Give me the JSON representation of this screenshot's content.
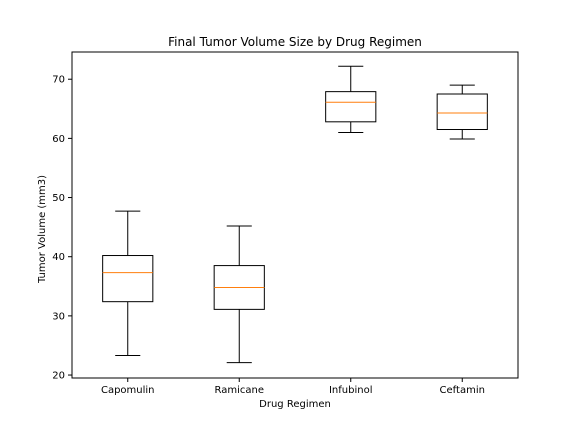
{
  "chart_data": {
    "type": "box",
    "title": "Final Tumor Volume Size by Drug Regimen",
    "xlabel": "Drug Regimen",
    "ylabel": "Tumor Volume (mm3)",
    "ylim": [
      19.5,
      74.6
    ],
    "yticks": [
      20,
      30,
      40,
      50,
      60,
      70
    ],
    "grid": false,
    "categories": [
      "Capomulin",
      "Ramicane",
      "Infubinol",
      "Ceftamin"
    ],
    "boxes": [
      {
        "whisker_low": 23.3,
        "q1": 32.4,
        "median": 37.3,
        "q3": 40.2,
        "whisker_high": 47.7
      },
      {
        "whisker_low": 22.1,
        "q1": 31.1,
        "median": 34.8,
        "q3": 38.5,
        "whisker_high": 45.2
      },
      {
        "whisker_low": 61.0,
        "q1": 62.8,
        "median": 66.1,
        "q3": 67.9,
        "whisker_high": 72.2
      },
      {
        "whisker_low": 59.9,
        "q1": 61.5,
        "median": 64.3,
        "q3": 67.5,
        "whisker_high": 69.0
      }
    ],
    "colors": {
      "box": "#000000",
      "median": "#ff7f0e",
      "frame": "#000000"
    }
  }
}
